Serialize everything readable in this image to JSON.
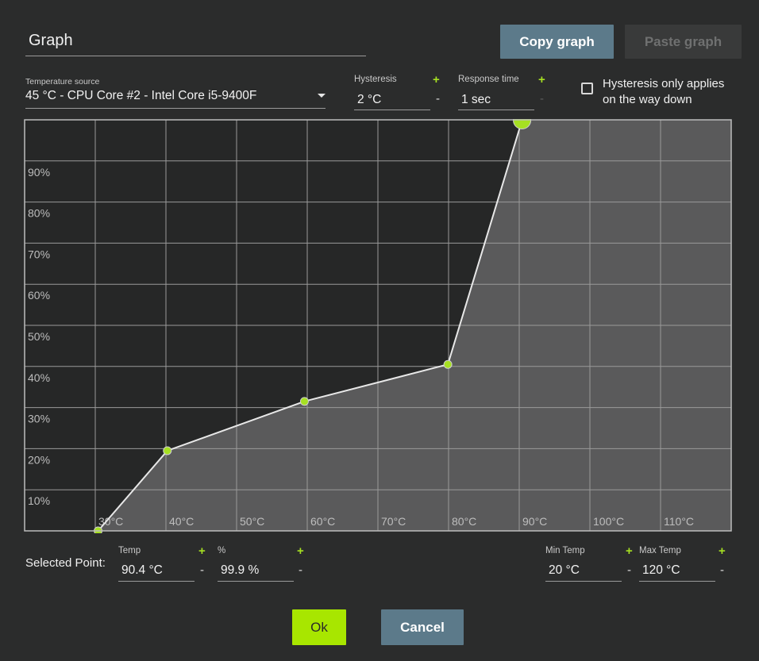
{
  "dialog": {
    "title": "Graph",
    "copy_button": "Copy graph",
    "paste_button": "Paste graph"
  },
  "temperature_source": {
    "label": "Temperature source",
    "value": "45 °C - CPU Core #2 - Intel Core i5-9400F"
  },
  "hysteresis": {
    "label": "Hysteresis",
    "value": "2 °C",
    "plus": "+",
    "minus": "-"
  },
  "response_time": {
    "label": "Response time",
    "value": "1 sec",
    "plus": "+",
    "minus": "-"
  },
  "hysteresis_down": {
    "label_line1": "Hysteresis only applies",
    "label_line2": "on the way down",
    "checked": false
  },
  "selected_point": {
    "label": "Selected Point:",
    "temp_label": "Temp",
    "temp_value": "90.4 °C",
    "pct_label": "%",
    "pct_value": "99.9 %",
    "plus": "+",
    "minus": "-"
  },
  "min_temp": {
    "label": "Min Temp",
    "value": "20 °C",
    "plus": "+",
    "minus": "-"
  },
  "max_temp": {
    "label": "Max Temp",
    "value": "120 °C",
    "plus": "+",
    "minus": "-"
  },
  "buttons": {
    "ok": "Ok",
    "cancel": "Cancel"
  },
  "colors": {
    "accent": "#a6e022",
    "button": "#5c7a8a",
    "graph_background": "#262727",
    "fill": "#5a5a5b"
  },
  "chart_data": {
    "type": "line",
    "x_tick_labels": [
      "30°C",
      "40°C",
      "50°C",
      "60°C",
      "70°C",
      "80°C",
      "90°C",
      "100°C",
      "110°C"
    ],
    "y_tick_labels": [
      "10%",
      "20%",
      "30%",
      "40%",
      "50%",
      "60%",
      "70%",
      "80%",
      "90%"
    ],
    "xlim": [
      20,
      120
    ],
    "ylim": [
      0,
      100
    ],
    "grid": true,
    "points": [
      {
        "x": 30.4,
        "y": 0
      },
      {
        "x": 40.2,
        "y": 19.5
      },
      {
        "x": 59.6,
        "y": 31.5
      },
      {
        "x": 79.9,
        "y": 40.5
      },
      {
        "x": 90.4,
        "y": 99.9
      }
    ],
    "selected_index": 4
  }
}
